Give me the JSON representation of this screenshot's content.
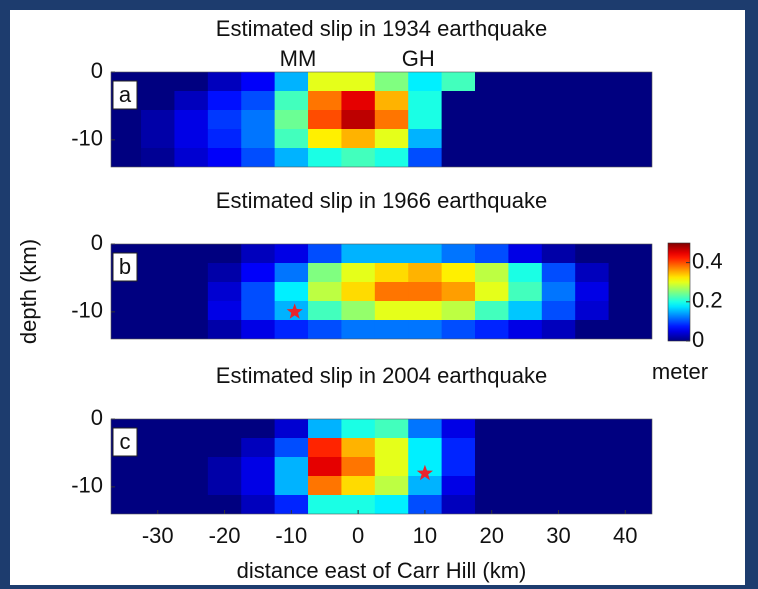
{
  "chart_data": [
    {
      "type": "heatmap",
      "title": "Estimated slip in 1934 earthquake",
      "panel_label": "a",
      "annotations": [
        {
          "text": "MM",
          "x": -9
        },
        {
          "text": "GH",
          "x": 9
        }
      ],
      "x": [
        -35,
        -30,
        -25,
        -20,
        -15,
        -10,
        -5,
        0,
        5,
        10,
        15,
        20,
        25,
        30,
        35,
        40
      ],
      "y": [
        -1.4,
        -4.2,
        -7,
        -9.8,
        -12.6
      ],
      "z": [
        [
          0,
          0,
          0,
          0.03,
          0.06,
          0.15,
          0.3,
          0.3,
          0.25,
          0.18,
          0.22,
          0,
          0,
          0,
          0,
          0
        ],
        [
          0,
          0,
          0.03,
          0.07,
          0.1,
          0.22,
          0.38,
          0.45,
          0.35,
          0.2,
          0,
          0,
          0,
          0,
          0,
          0
        ],
        [
          0,
          0.02,
          0.05,
          0.09,
          0.12,
          0.24,
          0.4,
          0.47,
          0.38,
          0.2,
          0,
          0,
          0,
          0,
          0,
          0
        ],
        [
          0,
          0.02,
          0.05,
          0.08,
          0.12,
          0.22,
          0.32,
          0.35,
          0.3,
          0.15,
          0,
          0,
          0,
          0,
          0,
          0
        ],
        [
          0,
          0.01,
          0.04,
          0.06,
          0.1,
          0.15,
          0.2,
          0.22,
          0.2,
          0.1,
          0,
          0,
          0,
          0,
          0,
          0
        ]
      ],
      "xlim": [
        -37,
        44
      ],
      "ylim": [
        -14,
        0
      ],
      "yticks": [
        -10,
        0
      ]
    },
    {
      "type": "heatmap",
      "title": "Estimated slip in 1966 earthquake",
      "panel_label": "b",
      "ylabel": "depth (km)",
      "epicenter": {
        "x": -9.5,
        "y": -10
      },
      "x": [
        -35,
        -30,
        -25,
        -20,
        -15,
        -10,
        -5,
        0,
        5,
        10,
        15,
        20,
        25,
        30,
        35,
        40
      ],
      "y": [
        -1.4,
        -4.2,
        -7,
        -9.8,
        -12.6
      ],
      "z": [
        [
          0,
          0,
          0,
          0,
          0.03,
          0.05,
          0.1,
          0.15,
          0.15,
          0.15,
          0.12,
          0.1,
          0.05,
          0.02,
          0,
          0
        ],
        [
          0,
          0,
          0,
          0.02,
          0.06,
          0.12,
          0.25,
          0.3,
          0.33,
          0.35,
          0.32,
          0.28,
          0.2,
          0.1,
          0.03,
          0
        ],
        [
          0,
          0,
          0,
          0.04,
          0.1,
          0.18,
          0.28,
          0.33,
          0.38,
          0.38,
          0.36,
          0.3,
          0.22,
          0.12,
          0.05,
          0
        ],
        [
          0,
          0,
          0,
          0.05,
          0.1,
          0.15,
          0.22,
          0.26,
          0.3,
          0.3,
          0.28,
          0.22,
          0.16,
          0.1,
          0.04,
          0
        ],
        [
          0,
          0,
          0,
          0.02,
          0.05,
          0.08,
          0.1,
          0.12,
          0.12,
          0.12,
          0.1,
          0.08,
          0.05,
          0.03,
          0,
          0
        ]
      ],
      "xlim": [
        -37,
        44
      ],
      "ylim": [
        -14,
        0
      ],
      "yticks": [
        -10,
        0
      ],
      "colorbar": {
        "label": "meter",
        "clim": [
          0,
          0.5
        ],
        "ticks": [
          0,
          0.2,
          0.4
        ]
      }
    },
    {
      "type": "heatmap",
      "title": "Estimated slip in 2004 earthquake",
      "panel_label": "c",
      "xlabel": "distance east of Carr Hill (km)",
      "epicenter": {
        "x": 10,
        "y": -8
      },
      "x": [
        -35,
        -30,
        -25,
        -20,
        -15,
        -10,
        -5,
        0,
        5,
        10,
        15,
        20,
        25,
        30,
        35,
        40
      ],
      "y": [
        -1.4,
        -4.2,
        -7,
        -9.8,
        -12.6
      ],
      "z": [
        [
          0,
          0,
          0,
          0,
          0,
          0.04,
          0.15,
          0.2,
          0.22,
          0.12,
          0.05,
          0,
          0,
          0,
          0,
          0
        ],
        [
          0,
          0,
          0,
          0,
          0.03,
          0.1,
          0.42,
          0.35,
          0.3,
          0.18,
          0.08,
          0,
          0,
          0,
          0,
          0
        ],
        [
          0,
          0,
          0,
          0.02,
          0.05,
          0.15,
          0.45,
          0.38,
          0.3,
          0.18,
          0.08,
          0,
          0,
          0,
          0,
          0
        ],
        [
          0,
          0,
          0,
          0.02,
          0.05,
          0.15,
          0.38,
          0.33,
          0.28,
          0.15,
          0.05,
          0,
          0,
          0,
          0,
          0
        ],
        [
          0,
          0,
          0,
          0,
          0.03,
          0.08,
          0.2,
          0.2,
          0.18,
          0.1,
          0.03,
          0,
          0,
          0,
          0,
          0
        ]
      ],
      "xlim": [
        -37,
        44
      ],
      "ylim": [
        -14,
        0
      ],
      "yticks": [
        -10,
        0
      ],
      "xticks": [
        -30,
        -20,
        -10,
        0,
        10,
        20,
        30,
        40
      ]
    }
  ]
}
